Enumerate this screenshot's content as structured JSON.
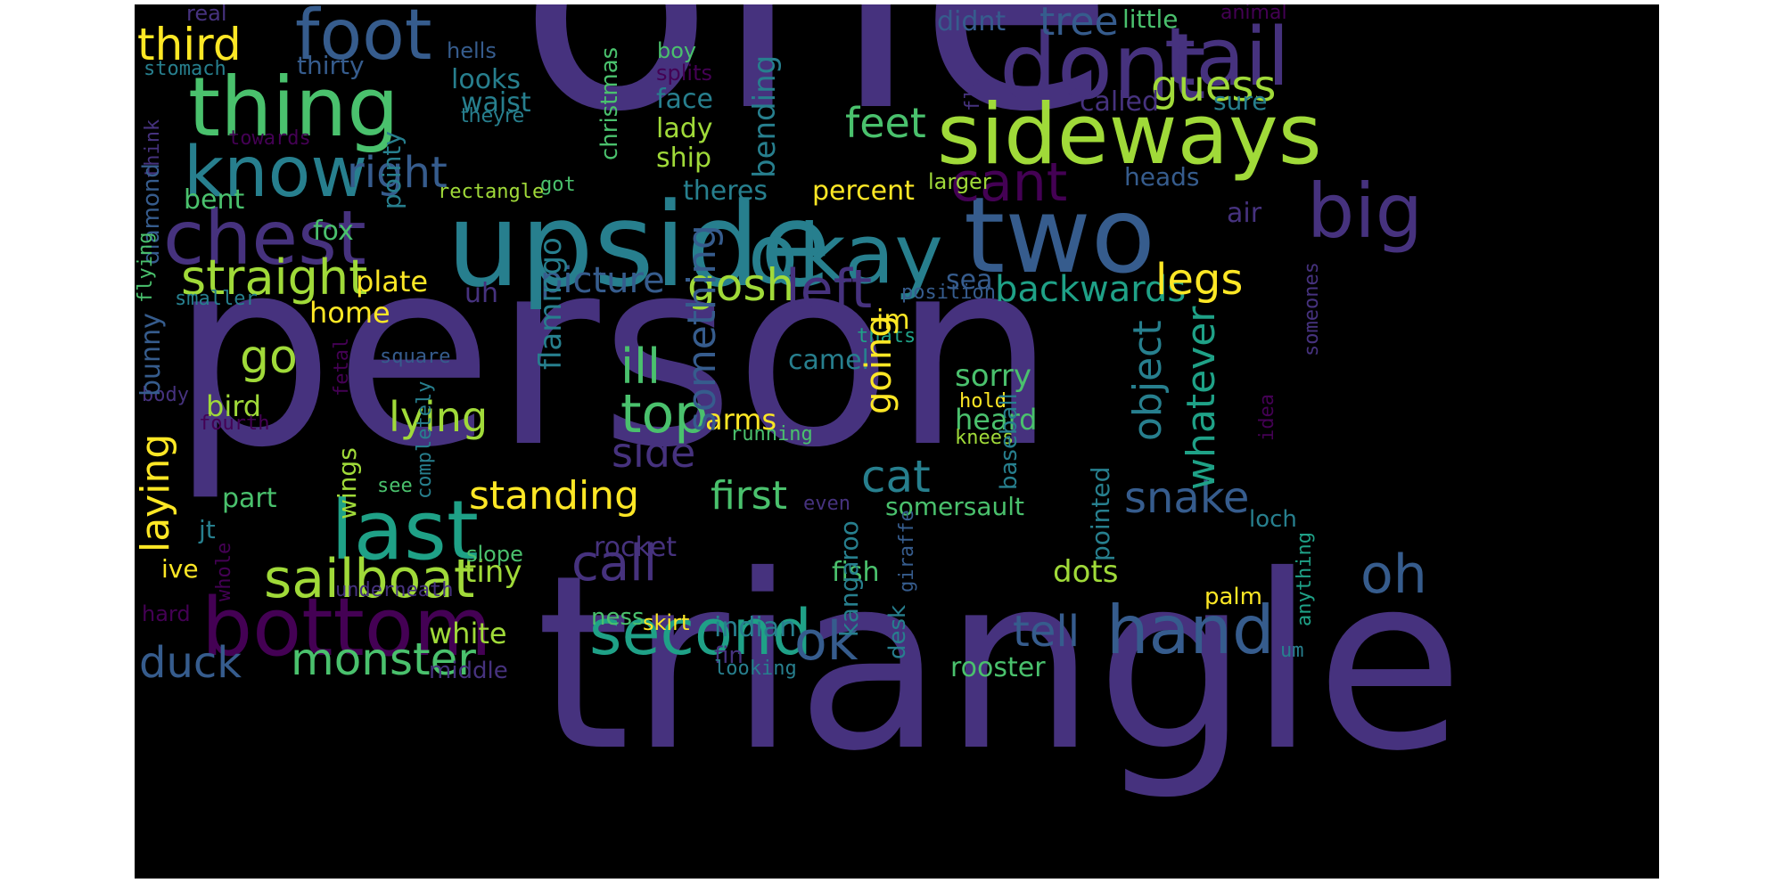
{
  "cloud": {
    "background": "#000000",
    "palette": [
      "#440154",
      "#46327e",
      "#365c8d",
      "#277f8e",
      "#1fa187",
      "#4ac16d",
      "#a0da39",
      "#fde725"
    ],
    "words": [
      {
        "text": "one",
        "color": "#46327e"
      },
      {
        "text": "person",
        "color": "#46327e"
      },
      {
        "text": "triangle",
        "color": "#46327e"
      },
      {
        "text": "upside",
        "color": "#277f8e"
      },
      {
        "text": "two",
        "color": "#365c8d"
      },
      {
        "text": "sideways",
        "color": "#a0da39"
      },
      {
        "text": "dont",
        "color": "#46327e"
      },
      {
        "text": "tail",
        "color": "#46327e"
      },
      {
        "text": "thing",
        "color": "#4ac16d"
      },
      {
        "text": "foot",
        "color": "#365c8d"
      },
      {
        "text": "know",
        "color": "#277f8e"
      },
      {
        "text": "chest",
        "color": "#46327e"
      },
      {
        "text": "okay",
        "color": "#277f8e"
      },
      {
        "text": "big",
        "color": "#46327e"
      },
      {
        "text": "bottom",
        "color": "#440154"
      },
      {
        "text": "last",
        "color": "#1fa187"
      },
      {
        "text": "second",
        "color": "#1fa187"
      },
      {
        "text": "hand",
        "color": "#365c8d"
      },
      {
        "text": "sailboat",
        "color": "#a0da39"
      },
      {
        "text": "straight",
        "color": "#a0da39"
      },
      {
        "text": "left",
        "color": "#46327e"
      },
      {
        "text": "oh",
        "color": "#365c8d"
      },
      {
        "text": "third",
        "color": "#fde725"
      },
      {
        "text": "right",
        "color": "#365c8d"
      },
      {
        "text": "feet",
        "color": "#4ac16d"
      },
      {
        "text": "cant",
        "color": "#440154"
      },
      {
        "text": "guess",
        "color": "#a0da39"
      },
      {
        "text": "tree",
        "color": "#365c8d"
      },
      {
        "text": "gosh",
        "color": "#a0da39"
      },
      {
        "text": "picture",
        "color": "#365c8d"
      },
      {
        "text": "backwards",
        "color": "#1fa187"
      },
      {
        "text": "legs",
        "color": "#fde725"
      },
      {
        "text": "top",
        "color": "#4ac16d"
      },
      {
        "text": "go",
        "color": "#a0da39"
      },
      {
        "text": "ill",
        "color": "#4ac16d"
      },
      {
        "text": "monster",
        "color": "#4ac16d"
      },
      {
        "text": "duck",
        "color": "#365c8d"
      },
      {
        "text": "ok",
        "color": "#365c8d"
      },
      {
        "text": "call",
        "color": "#46327e"
      },
      {
        "text": "standing",
        "color": "#fde725"
      },
      {
        "text": "snake",
        "color": "#365c8d"
      },
      {
        "text": "cat",
        "color": "#277f8e"
      },
      {
        "text": "first",
        "color": "#4ac16d"
      },
      {
        "text": "side",
        "color": "#46327e"
      },
      {
        "text": "lying",
        "color": "#a0da39"
      },
      {
        "text": "tell",
        "color": "#365c8d"
      },
      {
        "text": "white",
        "color": "#a0da39"
      },
      {
        "text": "rooster",
        "color": "#4ac16d"
      },
      {
        "text": "dots",
        "color": "#a0da39"
      },
      {
        "text": "tiny",
        "color": "#a0da39"
      },
      {
        "text": "sorry",
        "color": "#4ac16d"
      },
      {
        "text": "heard",
        "color": "#4ac16d"
      },
      {
        "text": "arms",
        "color": "#fde725"
      },
      {
        "text": "bird",
        "color": "#a0da39"
      },
      {
        "text": "home",
        "color": "#fde725"
      },
      {
        "text": "plate",
        "color": "#fde725"
      },
      {
        "text": "fox",
        "color": "#4ac16d"
      },
      {
        "text": "sea",
        "color": "#365c8d"
      },
      {
        "text": "uh",
        "color": "#46327e"
      },
      {
        "text": "im",
        "color": "#fde725"
      },
      {
        "text": "camel",
        "color": "#277f8e"
      },
      {
        "text": "percent",
        "color": "#fde725"
      },
      {
        "text": "theres",
        "color": "#277f8e"
      },
      {
        "text": "bent",
        "color": "#4ac16d"
      },
      {
        "text": "lady",
        "color": "#a0da39"
      },
      {
        "text": "ship",
        "color": "#a0da39"
      },
      {
        "text": "face",
        "color": "#277f8e"
      },
      {
        "text": "waist",
        "color": "#277f8e"
      },
      {
        "text": "looks",
        "color": "#277f8e"
      },
      {
        "text": "thirty",
        "color": "#365c8d"
      },
      {
        "text": "hells",
        "color": "#365c8d"
      },
      {
        "text": "boy",
        "color": "#4ac16d"
      },
      {
        "text": "splits",
        "color": "#440154"
      },
      {
        "text": "theyre",
        "color": "#277f8e"
      },
      {
        "text": "called",
        "color": "#46327e"
      },
      {
        "text": "sure",
        "color": "#277f8e"
      },
      {
        "text": "heads",
        "color": "#365c8d"
      },
      {
        "text": "larger",
        "color": "#a0da39"
      },
      {
        "text": "air",
        "color": "#46327e"
      },
      {
        "text": "little",
        "color": "#4ac16d"
      },
      {
        "text": "didnt",
        "color": "#365c8d"
      },
      {
        "text": "animal",
        "color": "#440154"
      },
      {
        "text": "real",
        "color": "#46327e"
      },
      {
        "text": "stomach",
        "color": "#277f8e"
      },
      {
        "text": "towards",
        "color": "#440154"
      },
      {
        "text": "rectangle",
        "color": "#a0da39"
      },
      {
        "text": "got",
        "color": "#4ac16d"
      },
      {
        "text": "smaller",
        "color": "#277f8e"
      },
      {
        "text": "position",
        "color": "#365c8d"
      },
      {
        "text": "square",
        "color": "#365c8d"
      },
      {
        "text": "body",
        "color": "#46327e"
      },
      {
        "text": "fourth",
        "color": "#440154"
      },
      {
        "text": "running",
        "color": "#4ac16d"
      },
      {
        "text": "knees",
        "color": "#a0da39"
      },
      {
        "text": "hold",
        "color": "#fde725"
      },
      {
        "text": "thats",
        "color": "#1fa187"
      },
      {
        "text": "see",
        "color": "#4ac16d"
      },
      {
        "text": "even",
        "color": "#46327e"
      },
      {
        "text": "somersault",
        "color": "#4ac16d"
      },
      {
        "text": "part",
        "color": "#4ac16d"
      },
      {
        "text": "jt",
        "color": "#277f8e"
      },
      {
        "text": "ive",
        "color": "#fde725"
      },
      {
        "text": "slope",
        "color": "#4ac16d"
      },
      {
        "text": "rocket",
        "color": "#46327e"
      },
      {
        "text": "fish",
        "color": "#4ac16d"
      },
      {
        "text": "ness",
        "color": "#4ac16d"
      },
      {
        "text": "skirt",
        "color": "#fde725"
      },
      {
        "text": "indian",
        "color": "#277f8e"
      },
      {
        "text": "fin",
        "color": "#46327e"
      },
      {
        "text": "looking",
        "color": "#277f8e"
      },
      {
        "text": "middle",
        "color": "#46327e"
      },
      {
        "text": "underneath",
        "color": "#46327e"
      },
      {
        "text": "hard",
        "color": "#440154"
      },
      {
        "text": "palm",
        "color": "#fde725"
      },
      {
        "text": "um",
        "color": "#277f8e"
      },
      {
        "text": "loch",
        "color": "#277f8e"
      },
      {
        "text": "flat",
        "color": "#46327e"
      },
      {
        "text": "think",
        "color": "#46327e"
      },
      {
        "text": "diamond",
        "color": "#365c8d"
      },
      {
        "text": "pointy",
        "color": "#277f8e"
      },
      {
        "text": "christmas",
        "color": "#4ac16d"
      },
      {
        "text": "bending",
        "color": "#277f8e"
      },
      {
        "text": "flamingo",
        "color": "#277f8e"
      },
      {
        "text": "something",
        "color": "#365c8d"
      },
      {
        "text": "going",
        "color": "#fde725"
      },
      {
        "text": "object",
        "color": "#277f8e"
      },
      {
        "text": "whatever",
        "color": "#1fa187"
      },
      {
        "text": "laying",
        "color": "#fde725"
      },
      {
        "text": "bunny",
        "color": "#365c8d"
      },
      {
        "text": "flying",
        "color": "#4ac16d"
      },
      {
        "text": "fetal",
        "color": "#440154"
      },
      {
        "text": "completely",
        "color": "#277f8e"
      },
      {
        "text": "wings",
        "color": "#a0da39"
      },
      {
        "text": "whole",
        "color": "#440154"
      },
      {
        "text": "kangaroo",
        "color": "#277f8e"
      },
      {
        "text": "desk",
        "color": "#277f8e"
      },
      {
        "text": "baseball",
        "color": "#277f8e"
      },
      {
        "text": "pointed",
        "color": "#277f8e"
      },
      {
        "text": "giraffe",
        "color": "#365c8d"
      },
      {
        "text": "idea",
        "color": "#440154"
      },
      {
        "text": "someones",
        "color": "#46327e"
      },
      {
        "text": "anything",
        "color": "#1fa187"
      }
    ]
  }
}
